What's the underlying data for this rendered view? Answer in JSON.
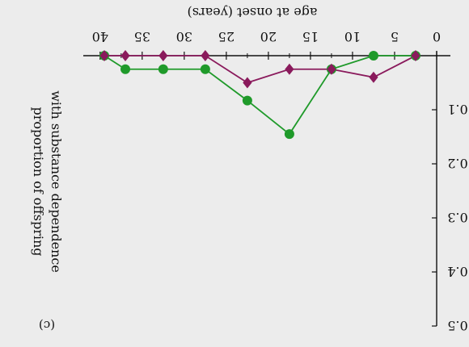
{
  "chart_data": {
    "type": "line",
    "title": "",
    "panel_label": "(c)",
    "orientation": "mirrored: image is flipped horizontally and vertically; y increases downward from top axis",
    "xlabel": "age at onset (years)",
    "ylabel_lines": [
      "proportion of offspring",
      "with substance dependence"
    ],
    "xlim": [
      0,
      42
    ],
    "ylim": [
      0,
      0.5
    ],
    "x_ticks": [
      0,
      5,
      10,
      15,
      20,
      25,
      30,
      35,
      40
    ],
    "y_ticks": [
      0.1,
      0.2,
      0.3,
      0.4,
      0.5
    ],
    "grid": false,
    "legend": "none",
    "series": [
      {
        "color": "#1f9a2a",
        "marker": "circle",
        "x": [
          39.5,
          37,
          32.5,
          27.5,
          22.5,
          17.5,
          12.5,
          7.5,
          2.5
        ],
        "y": [
          0.0,
          0.025,
          0.025,
          0.025,
          0.083,
          0.145,
          0.025,
          0.0,
          0.0
        ]
      },
      {
        "color": "#8a1a5c",
        "marker": "diamond",
        "x": [
          39.5,
          37,
          32.5,
          27.5,
          22.5,
          17.5,
          12.5,
          7.5,
          2.5
        ],
        "y": [
          0.0,
          0.0,
          0.0,
          0.0,
          0.05,
          0.025,
          0.025,
          0.04,
          0.0
        ]
      }
    ]
  }
}
